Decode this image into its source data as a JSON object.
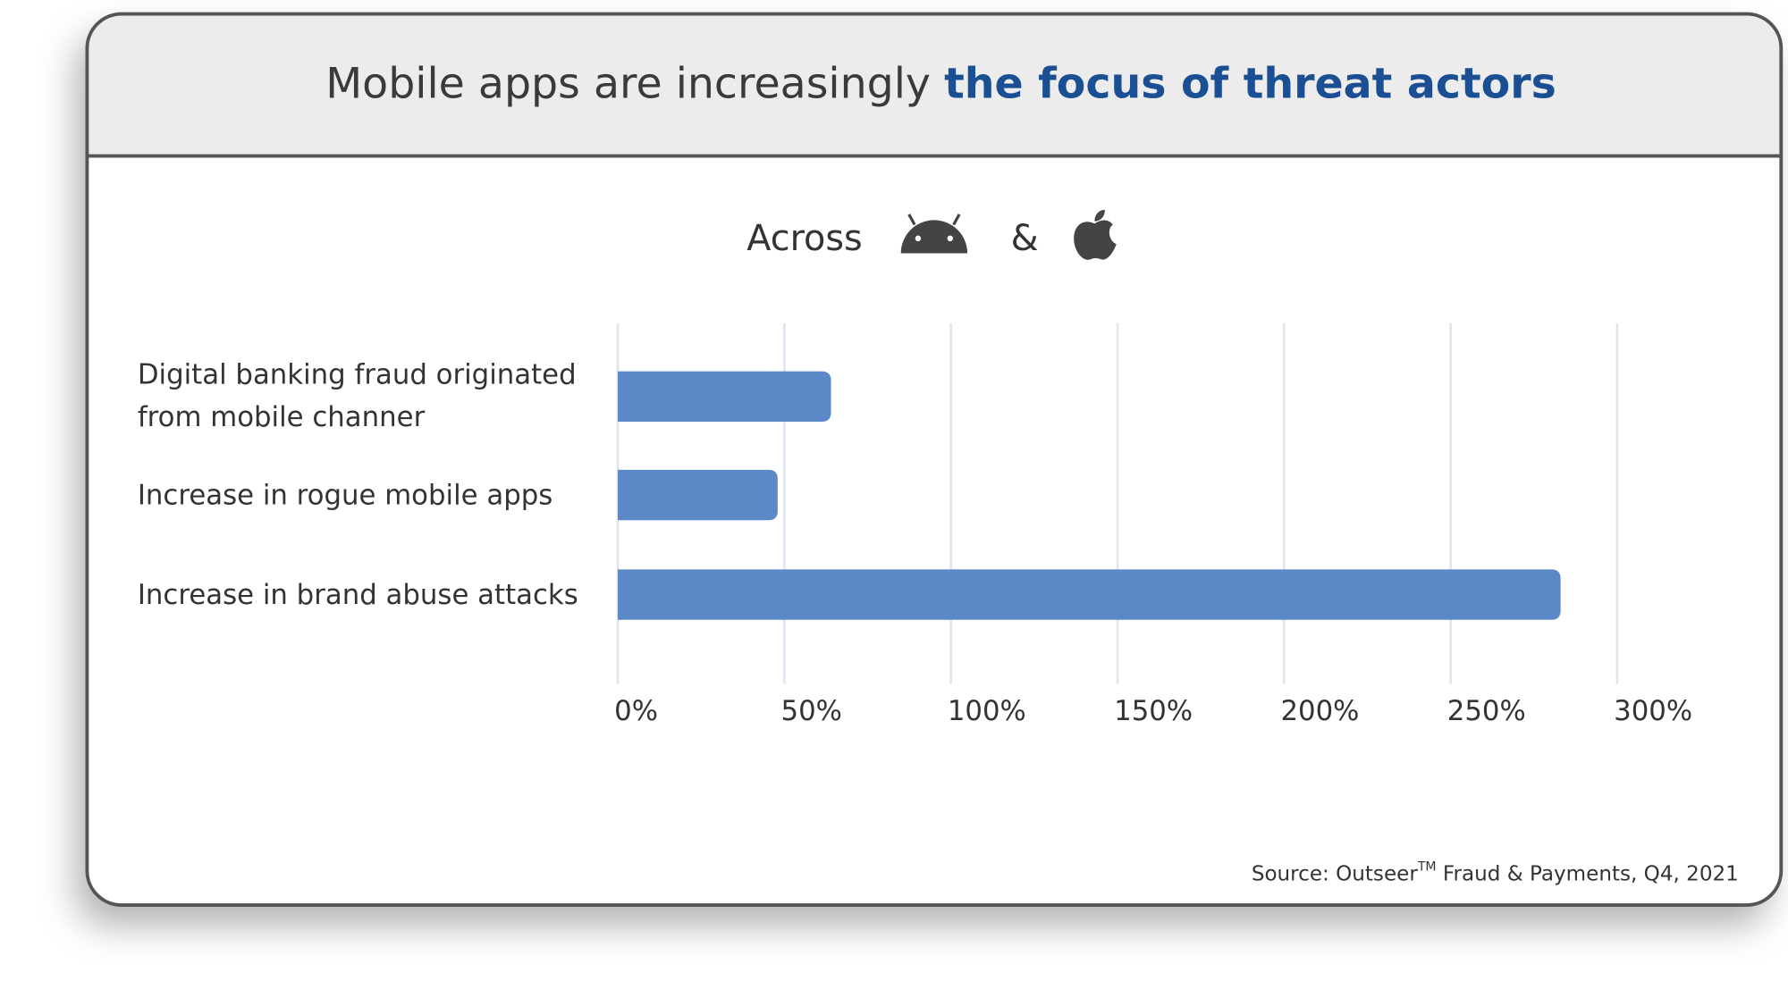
{
  "chart_data": {
    "type": "bar",
    "orientation": "horizontal",
    "title": "Mobile apps are increasingly ",
    "title_highlight": "the focus of threat actors",
    "subtitle": "Across",
    "subtitle_join": "&",
    "categories": [
      "Digital banking fraud originated from mobile channer",
      "Increase in rogue mobile apps",
      "Increase in brand abuse attacks"
    ],
    "values": [
      64,
      48,
      283
    ],
    "color": "#5b89c7",
    "xlim": [
      0,
      300
    ],
    "xticks": [
      {
        "value": 0,
        "label": "0%"
      },
      {
        "value": 50,
        "label": "50%"
      },
      {
        "value": 100,
        "label": "100%"
      },
      {
        "value": 150,
        "label": "150%"
      },
      {
        "value": 200,
        "label": "200%"
      },
      {
        "value": 250,
        "label": "250%"
      },
      {
        "value": 300,
        "label": "300%"
      }
    ],
    "grid": true,
    "source": "Source: Outseer",
    "source_mark": "TM",
    "source_rest": " Fraud & Payments, Q4, 2021"
  }
}
